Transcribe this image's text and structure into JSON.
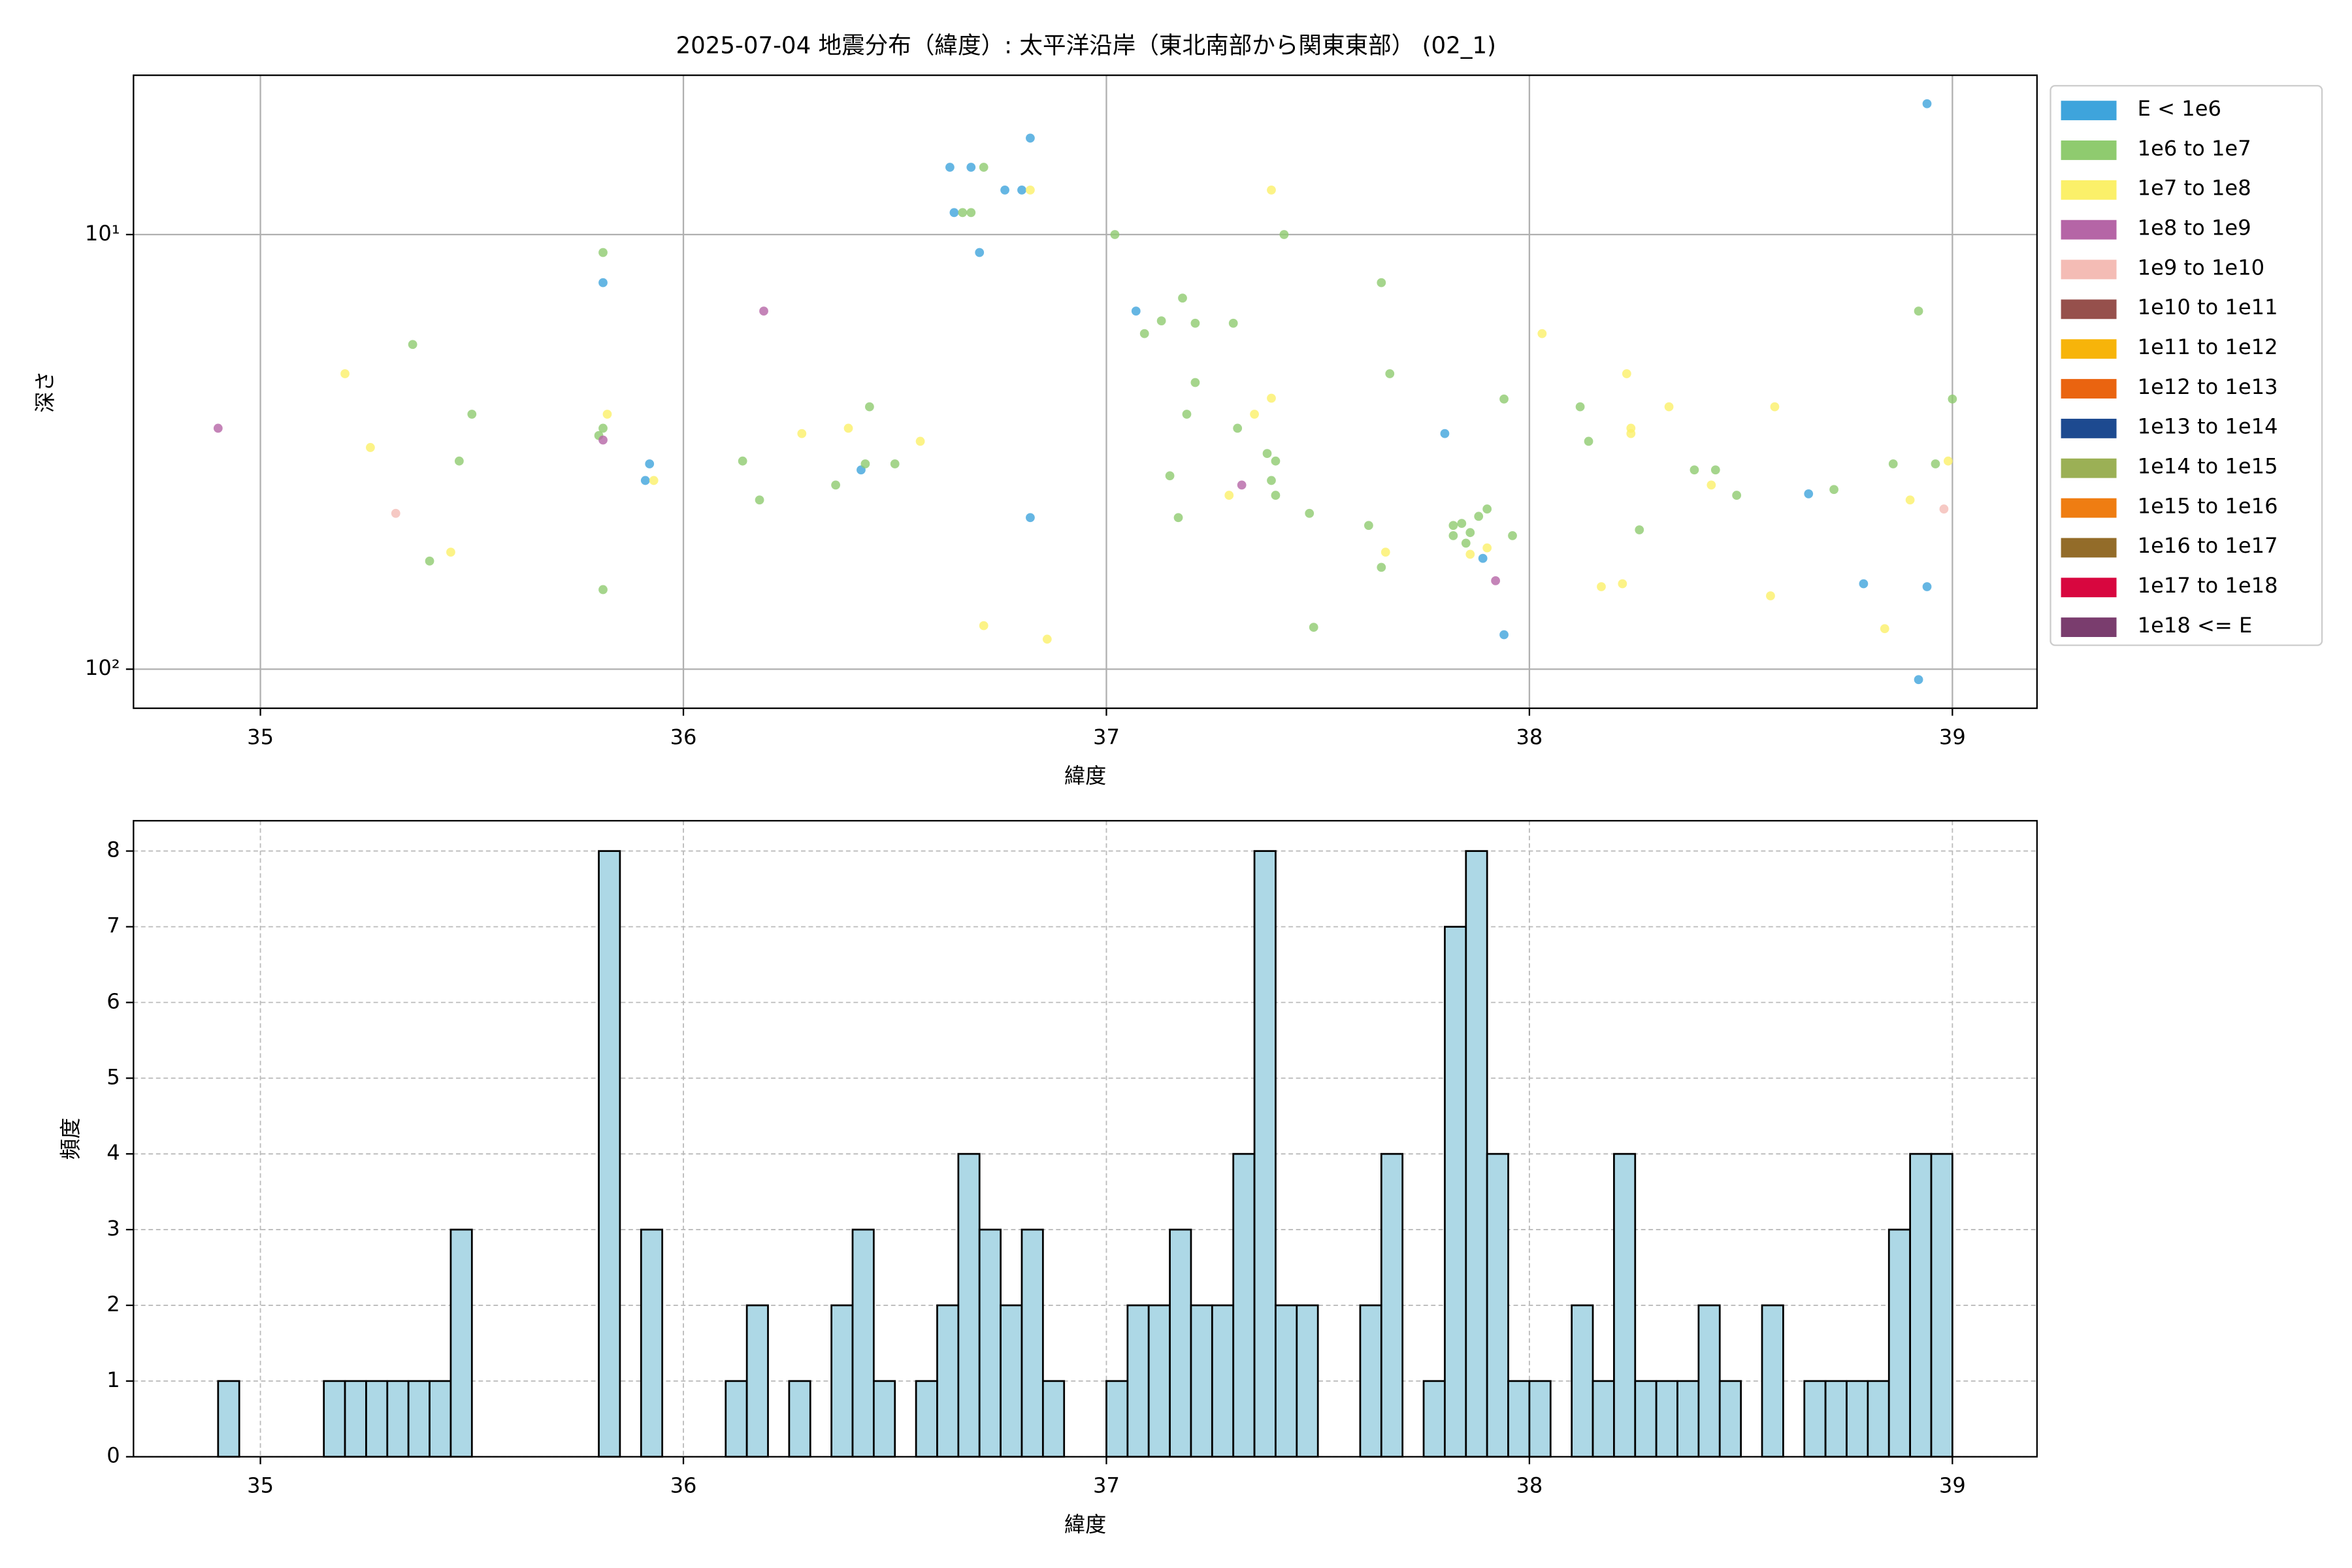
{
  "chart_data": [
    {
      "type": "scatter",
      "title": "2025-07-04 地震分布（緯度）: 太平洋沿岸（東北南部から関東東部） (02_1)",
      "xlabel": "緯度",
      "ylabel": "深さ",
      "xlim": [
        34.7,
        39.2
      ],
      "xticks": [
        35,
        36,
        37,
        38,
        39
      ],
      "ylim": [
        123,
        4.3
      ],
      "yscale": "log",
      "yticks": [
        {
          "value": 10,
          "label": "10¹"
        },
        {
          "value": 100,
          "label": "10²"
        }
      ],
      "grid": true,
      "legend": "outside upper right",
      "series": [
        {
          "name": "E < 1e6",
          "color": "#3ea4dc",
          "x": [
            38.94,
            36.82,
            36.63,
            36.68,
            36.64,
            36.76,
            36.8,
            36.7,
            35.81,
            35.92,
            35.91,
            36.42,
            36.82,
            37.07,
            37.8,
            37.89,
            37.94,
            38.66,
            38.79,
            38.94,
            38.92
          ],
          "y": [
            5.0,
            6.0,
            7.0,
            7.0,
            8.9,
            7.9,
            7.9,
            11.0,
            12.9,
            33.7,
            36.8,
            34.8,
            44.8,
            15.0,
            28.7,
            55.6,
            83.3,
            39.5,
            63.6,
            64.6,
            105.7
          ]
        },
        {
          "name": "1e6 to 1e7",
          "color": "#8fcb6f",
          "x": [
            36.71,
            36.66,
            36.68,
            37.02,
            37.42,
            35.81,
            37.65,
            37.18,
            37.13,
            37.21,
            37.3,
            38.92,
            37.09,
            35.36,
            37.67,
            37.21,
            37.94,
            39.0,
            36.44,
            38.12,
            35.5,
            37.19,
            35.81,
            37.31,
            35.8,
            38.14,
            37.38,
            37.4,
            35.47,
            36.14,
            36.5,
            38.96,
            38.86,
            38.39,
            38.44,
            36.43,
            37.15,
            36.36,
            37.39,
            38.72,
            38.49,
            36.18,
            37.4,
            37.48,
            37.17,
            37.62,
            37.82,
            37.84,
            37.82,
            37.86,
            38.26,
            37.9,
            37.88,
            37.96,
            37.85,
            35.4,
            37.65,
            35.81,
            37.49
          ],
          "y": [
            7.0,
            8.9,
            8.9,
            10.0,
            10.0,
            11.0,
            12.9,
            14.0,
            15.8,
            16.0,
            16.0,
            15.0,
            16.9,
            17.9,
            20.9,
            21.9,
            23.9,
            23.9,
            24.9,
            24.9,
            25.9,
            25.9,
            27.9,
            27.9,
            29.0,
            29.9,
            31.9,
            33.2,
            33.2,
            33.2,
            33.7,
            33.7,
            33.7,
            34.8,
            34.8,
            33.7,
            35.9,
            37.7,
            36.8,
            38.6,
            39.8,
            40.8,
            39.8,
            43.8,
            44.8,
            46.7,
            46.7,
            46.2,
            49.3,
            48.5,
            47.8,
            42.8,
            44.5,
            49.3,
            51.3,
            56.4,
            58.3,
            65.6,
            80.1
          ]
        },
        {
          "name": "1e7 to 1e8",
          "color": "#fbf069",
          "x": [
            35.2,
            37.39,
            36.82,
            38.03,
            38.23,
            37.39,
            37.35,
            38.33,
            38.58,
            35.82,
            38.24,
            38.24,
            36.28,
            36.39,
            36.56,
            35.26,
            38.99,
            35.93,
            38.43,
            37.29,
            38.9,
            37.66,
            35.45,
            37.86,
            37.9,
            38.17,
            38.22,
            38.57,
            36.71,
            38.84,
            36.86
          ],
          "y": [
            20.9,
            7.9,
            7.9,
            16.9,
            20.9,
            23.8,
            25.9,
            24.9,
            24.9,
            25.9,
            27.9,
            28.7,
            28.7,
            27.9,
            29.9,
            30.9,
            33.2,
            36.8,
            37.7,
            39.8,
            40.8,
            53.8,
            53.8,
            54.4,
            52.6,
            64.6,
            63.6,
            67.8,
            79.4,
            80.7,
            85.3
          ]
        },
        {
          "name": "1e8 to 1e9",
          "color": "#b565a6",
          "x": [
            34.9,
            36.19,
            35.81,
            37.32,
            37.92
          ],
          "y": [
            27.9,
            15.0,
            29.7,
            37.7,
            62.6
          ]
        },
        {
          "name": "1e9 to 1e10",
          "color": "#f4bcb5",
          "x": [
            35.32,
            38.98
          ],
          "y": [
            43.8,
            42.8
          ]
        },
        {
          "name": "1e10 to 1e11",
          "color": "#96504c",
          "x": [],
          "y": []
        },
        {
          "name": "1e11 to 1e12",
          "color": "#f7b40a",
          "x": [],
          "y": []
        },
        {
          "name": "1e12 to 1e13",
          "color": "#ea6410",
          "x": [],
          "y": []
        },
        {
          "name": "1e13 to 1e14",
          "color": "#1d4a90",
          "x": [],
          "y": []
        },
        {
          "name": "1e14 to 1e15",
          "color": "#9bb055",
          "x": [],
          "y": []
        },
        {
          "name": "1e15 to 1e16",
          "color": "#ef7d12",
          "x": [],
          "y": []
        },
        {
          "name": "1e16 to 1e17",
          "color": "#936c29",
          "x": [],
          "y": []
        },
        {
          "name": "1e17 to 1e18",
          "color": "#d8073f",
          "x": [],
          "y": []
        },
        {
          "name": "1e18 <= E",
          "color": "#7a3d6e",
          "x": [],
          "y": []
        }
      ]
    },
    {
      "type": "histogram",
      "xlabel": "緯度",
      "ylabel": "頻度",
      "xlim": [
        34.7,
        39.2
      ],
      "xticks": [
        35,
        36,
        37,
        38,
        39
      ],
      "ylim": [
        0,
        8.4
      ],
      "yticks": [
        0,
        1,
        2,
        3,
        4,
        5,
        6,
        7,
        8
      ],
      "grid": "dashed",
      "color": "#add8e6",
      "edgecolor": "#000000",
      "bins": [
        34.9,
        34.95,
        35,
        35.05,
        35.1,
        35.15,
        35.2,
        35.25,
        35.3,
        35.35,
        35.4,
        35.45,
        35.5,
        35.55,
        35.6,
        35.65,
        35.7,
        35.75,
        35.8,
        35.85,
        35.9,
        35.95,
        36,
        36.05,
        36.1,
        36.15,
        36.2,
        36.25,
        36.3,
        36.35,
        36.4,
        36.45,
        36.5,
        36.55,
        36.6,
        36.65,
        36.7,
        36.75,
        36.8,
        36.85,
        36.9,
        36.95,
        37,
        37.05,
        37.1,
        37.15,
        37.2,
        37.25,
        37.3,
        37.35,
        37.4,
        37.45,
        37.5,
        37.55,
        37.6,
        37.65,
        37.7,
        37.75,
        37.8,
        37.85,
        37.9,
        37.95,
        38,
        38.05,
        38.1,
        38.15,
        38.2,
        38.25,
        38.3,
        38.35,
        38.4,
        38.45,
        38.5,
        38.55,
        38.6,
        38.65,
        38.7,
        38.75,
        38.8,
        38.85,
        38.9,
        38.95,
        39
      ],
      "values": [
        1,
        0,
        0,
        0,
        0,
        1,
        1,
        1,
        1,
        1,
        1,
        3,
        0,
        0,
        0,
        0,
        0,
        0,
        8,
        0,
        3,
        0,
        0,
        0,
        1,
        2,
        0,
        1,
        0,
        2,
        3,
        1,
        0,
        1,
        2,
        4,
        3,
        2,
        3,
        1,
        0,
        0,
        1,
        2,
        2,
        3,
        2,
        2,
        4,
        8,
        2,
        2,
        0,
        0,
        2,
        4,
        0,
        1,
        7,
        8,
        4,
        1,
        1,
        0,
        2,
        1,
        4,
        1,
        1,
        1,
        2,
        1,
        0,
        2,
        0,
        1,
        1,
        1,
        1,
        3,
        4,
        4
      ]
    }
  ]
}
